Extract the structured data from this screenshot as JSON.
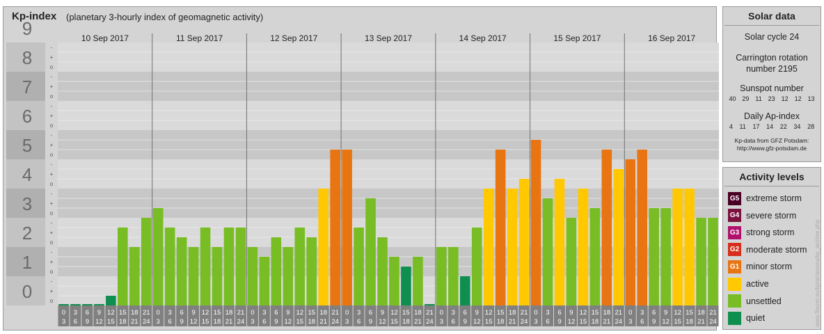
{
  "title": "Kp-index",
  "subtitle": "(planetary 3-hourly index of geomagnetic activity)",
  "colors": {
    "quiet": "#0f8f4f",
    "unsettled": "#78bd24",
    "active": "#ffc800",
    "G1": "#e87511",
    "G2": "#d62e1c",
    "G3": "#b0116c",
    "G4": "#7a123f",
    "G5": "#4a0024"
  },
  "chart_data": {
    "type": "bar",
    "ylim": [
      0,
      9
    ],
    "y_ticks": [
      "0",
      "1",
      "2",
      "3",
      "4",
      "5",
      "6",
      "7",
      "8",
      "9"
    ],
    "minor_labels": [
      "-",
      "o",
      "+"
    ],
    "days": [
      "10 Sep 2017",
      "11 Sep 2017",
      "12 Sep 2017",
      "13 Sep 2017",
      "14 Sep 2017",
      "15 Sep 2017",
      "16 Sep 2017"
    ],
    "interval_labels": [
      [
        "0",
        "3"
      ],
      [
        "3",
        "6"
      ],
      [
        "6",
        "9"
      ],
      [
        "9",
        "12"
      ],
      [
        "12",
        "15"
      ],
      [
        "15",
        "18"
      ],
      [
        "18",
        "21"
      ],
      [
        "21",
        "24"
      ]
    ],
    "values": [
      0.0,
      0.0,
      0.0,
      0.0,
      0.333,
      2.667,
      2.0,
      3.0,
      3.333,
      2.667,
      2.333,
      2.0,
      2.667,
      2.0,
      2.667,
      2.667,
      2.0,
      1.667,
      2.333,
      2.0,
      2.667,
      2.333,
      4.0,
      5.333,
      5.333,
      2.667,
      3.667,
      2.333,
      1.667,
      1.333,
      1.667,
      0.0,
      2.0,
      2.0,
      1.0,
      2.667,
      4.0,
      5.333,
      4.0,
      4.333,
      5.667,
      3.667,
      4.333,
      3.0,
      4.0,
      3.333,
      5.333,
      4.667,
      5.0,
      5.333,
      3.333,
      3.333,
      4.0,
      4.0,
      3.0,
      3.0
    ]
  },
  "solar": {
    "heading": "Solar data",
    "cycle": "Solar cycle 24",
    "carrington_1": "Carrington rotation",
    "carrington_2": "number 2195",
    "sunspot_heading": "Sunspot number",
    "sunspot": [
      "40",
      "29",
      "11",
      "23",
      "12",
      "12",
      "13"
    ],
    "ap_heading": "Daily Ap-index",
    "ap": [
      "4",
      "11",
      "17",
      "14",
      "22",
      "34",
      "28"
    ],
    "credit_1": "Kp-data from GFZ Potsdam:",
    "credit_2": "http://www.gfz-potsdam.de"
  },
  "legend": {
    "heading": "Activity levels",
    "items": [
      {
        "badge": "G5",
        "label": "extreme storm",
        "color": "#4a0024"
      },
      {
        "badge": "G4",
        "label": "severe storm",
        "color": "#7a123f"
      },
      {
        "badge": "G3",
        "label": "strong storm",
        "color": "#b0116c"
      },
      {
        "badge": "G2",
        "label": "moderate storm",
        "color": "#d62e1c"
      },
      {
        "badge": "G1",
        "label": "minor storm",
        "color": "#e87511"
      },
      {
        "badge": "",
        "label": "active",
        "color": "#ffc800"
      },
      {
        "badge": "",
        "label": "unsettled",
        "color": "#78bd24"
      },
      {
        "badge": "",
        "label": "quiet",
        "color": "#0f8f4f"
      }
    ]
  },
  "watermark": "www.fleuret.eu/kp/ar/aurora/kp_archive.php"
}
